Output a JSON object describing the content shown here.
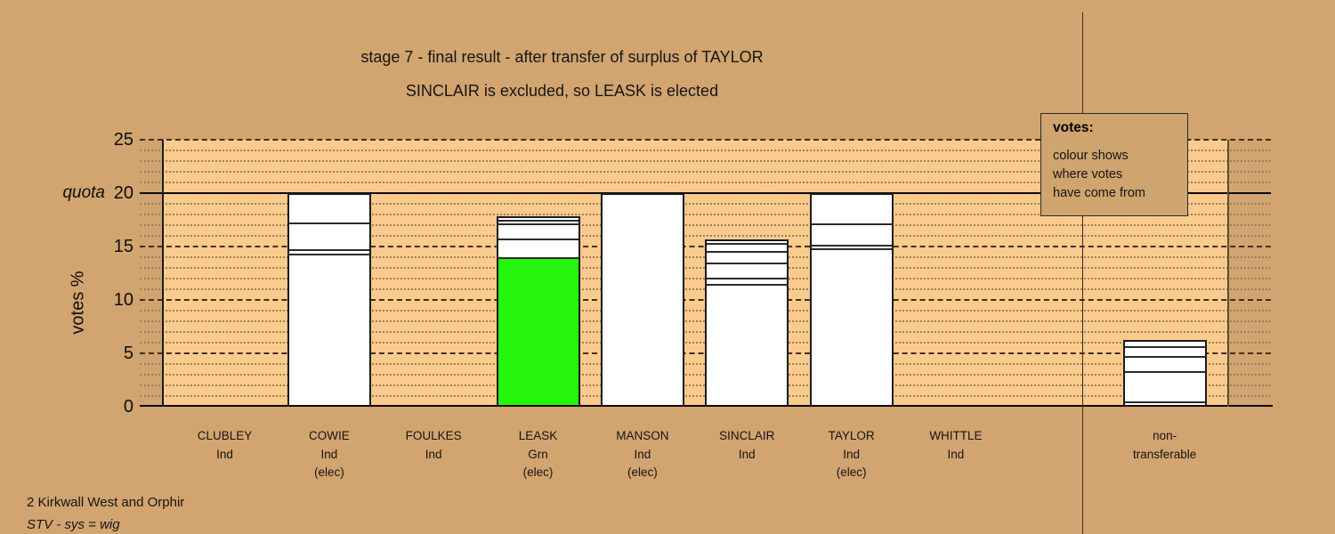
{
  "chart_data": {
    "type": "bar",
    "variant": "stacked-stv-votes",
    "title": "stage 7 - final result - after transfer of surplus of TAYLOR",
    "subtitle": "SINCLAIR is excluded, so LEASK is elected",
    "ylabel": "votes %",
    "quota_label": "quota",
    "quota_value": 20,
    "ylim": [
      0,
      25
    ],
    "yticks": [
      0,
      5,
      10,
      15,
      20,
      25
    ],
    "grid": {
      "minor_every": 1,
      "major_every": 5,
      "minor_style": "dotted",
      "major_style": "dashed",
      "solid_at": [
        0,
        20
      ],
      "legend_position": "top-right"
    },
    "colors": {
      "background": "#d2a46f",
      "plot_background": "#fbca8d",
      "bar_fill": "#ffffff",
      "grn_fill": "#25f50c"
    },
    "categories": [
      {
        "id": "clubley",
        "slot": 0,
        "label_lines": [
          "CLUBLEY",
          "Ind"
        ],
        "segments": []
      },
      {
        "id": "cowie",
        "slot": 1,
        "label_lines": [
          "COWIE",
          "Ind",
          "(elec)"
        ],
        "segments": [
          {
            "top": 14.2,
            "color": "#ffffff"
          },
          {
            "top": 14.6,
            "color": "#ffffff"
          },
          {
            "top": 17.1,
            "color": "#ffffff"
          },
          {
            "top": 20,
            "color": "#ffffff"
          }
        ]
      },
      {
        "id": "foulkes",
        "slot": 2,
        "label_lines": [
          "FOULKES",
          "Ind"
        ],
        "segments": []
      },
      {
        "id": "leask",
        "slot": 3,
        "label_lines": [
          "LEASK",
          "Grn",
          "(elec)"
        ],
        "segments": [
          {
            "top": 13.8,
            "color": "#25f50c"
          },
          {
            "top": 15.6,
            "color": "#ffffff"
          },
          {
            "top": 17.0,
            "color": "#ffffff"
          },
          {
            "top": 17.35,
            "color": "#ffffff"
          },
          {
            "top": 17.8,
            "color": "#ffffff"
          }
        ]
      },
      {
        "id": "manson",
        "slot": 4,
        "label_lines": [
          "MANSON",
          "Ind",
          "(elec)"
        ],
        "segments": [
          {
            "top": 20,
            "color": "#ffffff"
          }
        ]
      },
      {
        "id": "sinclair",
        "slot": 5,
        "label_lines": [
          "SINCLAIR",
          "Ind"
        ],
        "segments": [
          {
            "top": 11.3,
            "color": "#ffffff"
          },
          {
            "top": 11.9,
            "color": "#ffffff"
          },
          {
            "top": 13.3,
            "color": "#ffffff"
          },
          {
            "top": 14.4,
            "color": "#ffffff"
          },
          {
            "top": 15.15,
            "color": "#ffffff"
          },
          {
            "top": 15.7,
            "color": "#ffffff"
          }
        ]
      },
      {
        "id": "taylor",
        "slot": 6,
        "label_lines": [
          "TAYLOR",
          "Ind",
          "(elec)"
        ],
        "segments": [
          {
            "top": 14.7,
            "color": "#ffffff"
          },
          {
            "top": 15.0,
            "color": "#ffffff"
          },
          {
            "top": 17.0,
            "color": "#ffffff"
          },
          {
            "top": 20,
            "color": "#ffffff"
          }
        ]
      },
      {
        "id": "whittle",
        "slot": 7,
        "label_lines": [
          "WHITTLE",
          "Ind"
        ],
        "segments": []
      },
      {
        "id": "non-transferable",
        "slot": 9,
        "label_lines": [
          "non-",
          "transferable"
        ],
        "segments": [
          {
            "top": 0.3,
            "color": "#ffffff"
          },
          {
            "top": 3.15,
            "color": "#ffffff"
          },
          {
            "top": 4.6,
            "color": "#ffffff"
          },
          {
            "top": 5.5,
            "color": "#ffffff"
          },
          {
            "top": 6.25,
            "color": "#ffffff"
          }
        ]
      }
    ]
  },
  "legend": {
    "title": "votes:",
    "lines": [
      "colour shows",
      "where votes",
      "have come from"
    ]
  },
  "footer": {
    "line1": "2 Kirkwall West and Orphir",
    "line2": "STV - sys = wig"
  }
}
